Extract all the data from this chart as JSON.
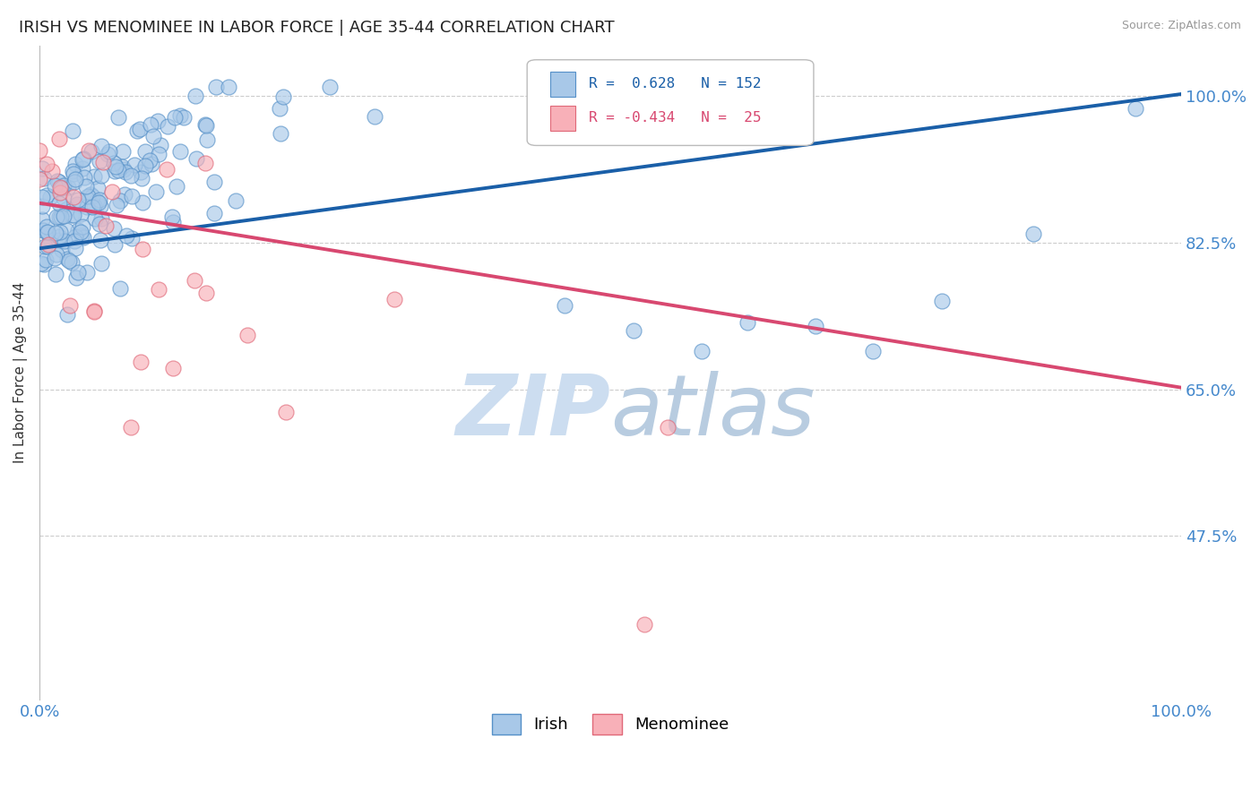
{
  "title": "IRISH VS MENOMINEE IN LABOR FORCE | AGE 35-44 CORRELATION CHART",
  "source_text": "Source: ZipAtlas.com",
  "ylabel": "In Labor Force | Age 35-44",
  "xmin": 0.0,
  "xmax": 1.0,
  "ymin": 0.28,
  "ymax": 1.06,
  "yticks": [
    0.475,
    0.65,
    0.825,
    1.0
  ],
  "ytick_labels": [
    "47.5%",
    "65.0%",
    "82.5%",
    "100.0%"
  ],
  "xtick_labels": [
    "0.0%",
    "100.0%"
  ],
  "blue_R": 0.628,
  "blue_N": 152,
  "pink_R": -0.434,
  "pink_N": 25,
  "blue_color": "#a8c8e8",
  "blue_edge_color": "#5590c8",
  "blue_line_color": "#1a5fa8",
  "pink_color": "#f8b0b8",
  "pink_edge_color": "#e06878",
  "pink_line_color": "#d84870",
  "background_color": "#ffffff",
  "watermark_color": "#ccddf0",
  "title_fontsize": 13,
  "axis_label_fontsize": 11,
  "tick_label_color": "#4488cc",
  "grid_color": "#cccccc",
  "blue_line_start_y": 0.818,
  "blue_line_end_y": 1.002,
  "pink_line_start_y": 0.872,
  "pink_line_end_y": 0.652
}
